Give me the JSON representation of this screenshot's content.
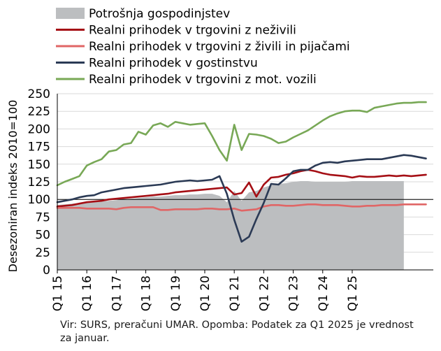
{
  "chart_data": {
    "type": "line",
    "ylabel": "Desezoniran indeks 2010=100",
    "ylim": [
      0,
      250
    ],
    "yticks": [
      0,
      25,
      50,
      75,
      100,
      125,
      150,
      175,
      200,
      225,
      250
    ],
    "x_tick_labels": [
      "Q1 15",
      "Q1 16",
      "Q1 17",
      "Q1 18",
      "Q1 19",
      "Q1 20",
      "Q1 21",
      "Q1 22",
      "Q1 23",
      "Q1 24",
      "Q1 25"
    ],
    "reference_line": 100,
    "grid": "horizontal",
    "legend_position": "top",
    "area_series": {
      "name": "Potrošnja gospodinjstev",
      "color": "#bcbec0",
      "x": [
        0,
        1,
        2,
        3,
        4,
        5,
        6,
        7,
        8,
        9,
        10,
        11,
        12,
        13,
        14,
        15,
        16,
        17,
        18,
        19,
        20,
        21,
        22,
        23,
        24,
        25,
        26,
        27,
        28,
        29,
        30,
        31,
        32,
        33,
        34,
        35,
        36,
        37,
        38,
        39,
        40,
        41,
        42,
        43,
        44,
        45,
        46,
        47
      ],
      "values": [
        92,
        93,
        94,
        95,
        96,
        96,
        97,
        98,
        99,
        100,
        101,
        102,
        103,
        104,
        104,
        105,
        106,
        106,
        107,
        107,
        108,
        108,
        105,
        96,
        112,
        98,
        110,
        112,
        117,
        120,
        122,
        123,
        125,
        126,
        126,
        125,
        125,
        125,
        125,
        125,
        126,
        126,
        126,
        126,
        126,
        126,
        126,
        126
      ]
    },
    "series": [
      {
        "name": "Realni prihodek v trgovini z neživili",
        "color": "#a50f15",
        "x": [
          0,
          1,
          2,
          3,
          4,
          5,
          6,
          7,
          8,
          9,
          10,
          11,
          12,
          13,
          14,
          15,
          16,
          17,
          18,
          19,
          20,
          21,
          22,
          23,
          24,
          25,
          26,
          27,
          28,
          29,
          30,
          31,
          32,
          33,
          34,
          35,
          36,
          37,
          38,
          39,
          40,
          41,
          42,
          43,
          44,
          45,
          46,
          47,
          48,
          49,
          50
        ],
        "values": [
          90,
          91,
          92,
          94,
          96,
          97,
          98,
          100,
          101,
          102,
          103,
          104,
          105,
          106,
          107,
          108,
          110,
          111,
          112,
          113,
          114,
          115,
          116,
          117,
          107,
          109,
          124,
          104,
          121,
          131,
          132,
          135,
          137,
          140,
          142,
          140,
          137,
          135,
          134,
          133,
          131,
          133,
          132,
          132,
          133,
          134,
          133,
          134,
          133,
          134,
          135
        ]
      },
      {
        "name": "Realni prihodek v trgovini z živili in pijačami",
        "color": "#e06666",
        "x": [
          0,
          1,
          2,
          3,
          4,
          5,
          6,
          7,
          8,
          9,
          10,
          11,
          12,
          13,
          14,
          15,
          16,
          17,
          18,
          19,
          20,
          21,
          22,
          23,
          24,
          25,
          26,
          27,
          28,
          29,
          30,
          31,
          32,
          33,
          34,
          35,
          36,
          37,
          38,
          39,
          40,
          41,
          42,
          43,
          44,
          45,
          46,
          47,
          48,
          49,
          50
        ],
        "values": [
          88,
          88,
          88,
          88,
          87,
          87,
          87,
          87,
          86,
          88,
          89,
          89,
          89,
          89,
          85,
          85,
          86,
          86,
          86,
          86,
          87,
          87,
          86,
          86,
          87,
          84,
          85,
          86,
          90,
          92,
          92,
          91,
          91,
          92,
          93,
          93,
          92,
          92,
          92,
          91,
          90,
          90,
          91,
          91,
          92,
          92,
          92,
          93,
          93,
          93,
          93
        ]
      },
      {
        "name": "Realni prihodek v gostinstvu",
        "color": "#2b3a55",
        "x": [
          0,
          1,
          2,
          3,
          4,
          5,
          6,
          7,
          8,
          9,
          10,
          11,
          12,
          13,
          14,
          15,
          16,
          17,
          18,
          19,
          20,
          21,
          22,
          23,
          24,
          25,
          26,
          27,
          28,
          29,
          30,
          31,
          32,
          33,
          34,
          35,
          36,
          37,
          38,
          39,
          40,
          41,
          42,
          43,
          44,
          45,
          46,
          47,
          48,
          49,
          50
        ],
        "values": [
          96,
          98,
          100,
          103,
          105,
          106,
          110,
          112,
          114,
          116,
          117,
          118,
          119,
          120,
          121,
          123,
          125,
          126,
          127,
          126,
          127,
          128,
          133,
          108,
          71,
          40,
          47,
          72,
          95,
          122,
          121,
          130,
          140,
          142,
          142,
          148,
          152,
          153,
          152,
          154,
          155,
          156,
          157,
          157,
          157,
          159,
          161,
          163,
          162,
          160,
          158
        ]
      },
      {
        "name": "Realni prihodek v trgovini z mot. vozili",
        "color": "#78a856",
        "x": [
          0,
          1,
          2,
          3,
          4,
          5,
          6,
          7,
          8,
          9,
          10,
          11,
          12,
          13,
          14,
          15,
          16,
          17,
          18,
          19,
          20,
          21,
          22,
          23,
          24,
          25,
          26,
          27,
          28,
          29,
          30,
          31,
          32,
          33,
          34,
          35,
          36,
          37,
          38,
          39,
          40,
          41,
          42,
          43,
          44,
          45,
          46,
          47,
          48,
          49,
          50
        ],
        "values": [
          120,
          125,
          129,
          133,
          148,
          153,
          157,
          168,
          170,
          178,
          180,
          196,
          192,
          205,
          208,
          203,
          210,
          208,
          206,
          207,
          208,
          190,
          170,
          155,
          206,
          170,
          193,
          192,
          190,
          186,
          180,
          182,
          188,
          193,
          198,
          205,
          212,
          218,
          222,
          225,
          226,
          226,
          224,
          230,
          232,
          234,
          236,
          237,
          237,
          238,
          238
        ]
      }
    ]
  },
  "source_note": "Vir: SURS, preračuni UMAR. Opomba: Podatek za Q1 2025 je vrednost za januar."
}
